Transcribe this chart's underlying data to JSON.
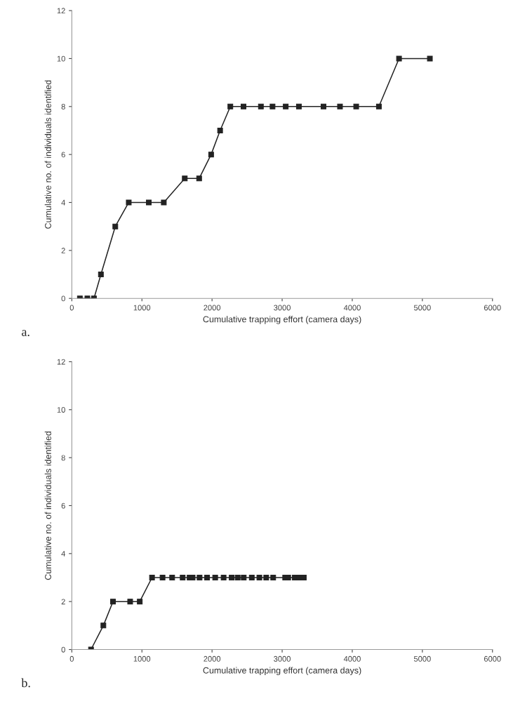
{
  "chart_data": [
    {
      "type": "line",
      "xlabel": "Cumulative trapping effort (camera days)",
      "ylabel": "Cumulative no. of individuals identified",
      "annotations": [
        "a."
      ],
      "series": [
        {
          "color": "#222222",
          "x": [
            115,
            222,
            316,
            415,
            620,
            812,
            1098,
            1312,
            1611,
            1816,
            1987,
            2115,
            2261,
            2449,
            2697,
            2863,
            3051,
            3239,
            3590,
            3825,
            4056,
            4380,
            4667,
            5107
          ],
          "values": [
            0,
            0,
            0,
            1,
            3,
            4,
            4,
            4,
            5,
            5,
            6,
            7,
            8,
            8,
            8,
            8,
            8,
            8,
            8,
            8,
            8,
            8,
            10,
            10
          ]
        }
      ],
      "xlim": [
        0,
        6000
      ],
      "xticks": [
        0,
        1000,
        2000,
        3000,
        4000,
        5000,
        6000
      ],
      "ylim": [
        0,
        12
      ],
      "yticks": [
        0,
        2,
        4,
        6,
        8,
        10,
        12
      ],
      "marker": "square",
      "line_style": "solid",
      "grid": false,
      "legend": false
    },
    {
      "type": "line",
      "xlabel": "Cumulative trapping effort (camera days)",
      "ylabel": "Cumulative no. of individuals identified",
      "annotations": [
        "b."
      ],
      "series": [
        {
          "color": "#222222",
          "x": [
            274,
            450,
            587,
            832,
            969,
            1144,
            1294,
            1431,
            1581,
            1680,
            1723,
            1822,
            1929,
            2045,
            2165,
            2280,
            2366,
            2452,
            2567,
            2675,
            2773,
            2872,
            3043,
            3086,
            3180,
            3244,
            3309
          ],
          "values": [
            0,
            1,
            2,
            2,
            2,
            3,
            3,
            3,
            3,
            3,
            3,
            3,
            3,
            3,
            3,
            3,
            3,
            3,
            3,
            3,
            3,
            3,
            3,
            3,
            3,
            3,
            3
          ]
        }
      ],
      "xlim": [
        0,
        6000
      ],
      "xticks": [
        0,
        1000,
        2000,
        3000,
        4000,
        5000,
        6000
      ],
      "ylim": [
        0,
        12
      ],
      "yticks": [
        0,
        2,
        4,
        6,
        8,
        10,
        12
      ],
      "marker": "square",
      "line_style": "solid",
      "grid": false,
      "legend": false
    }
  ]
}
